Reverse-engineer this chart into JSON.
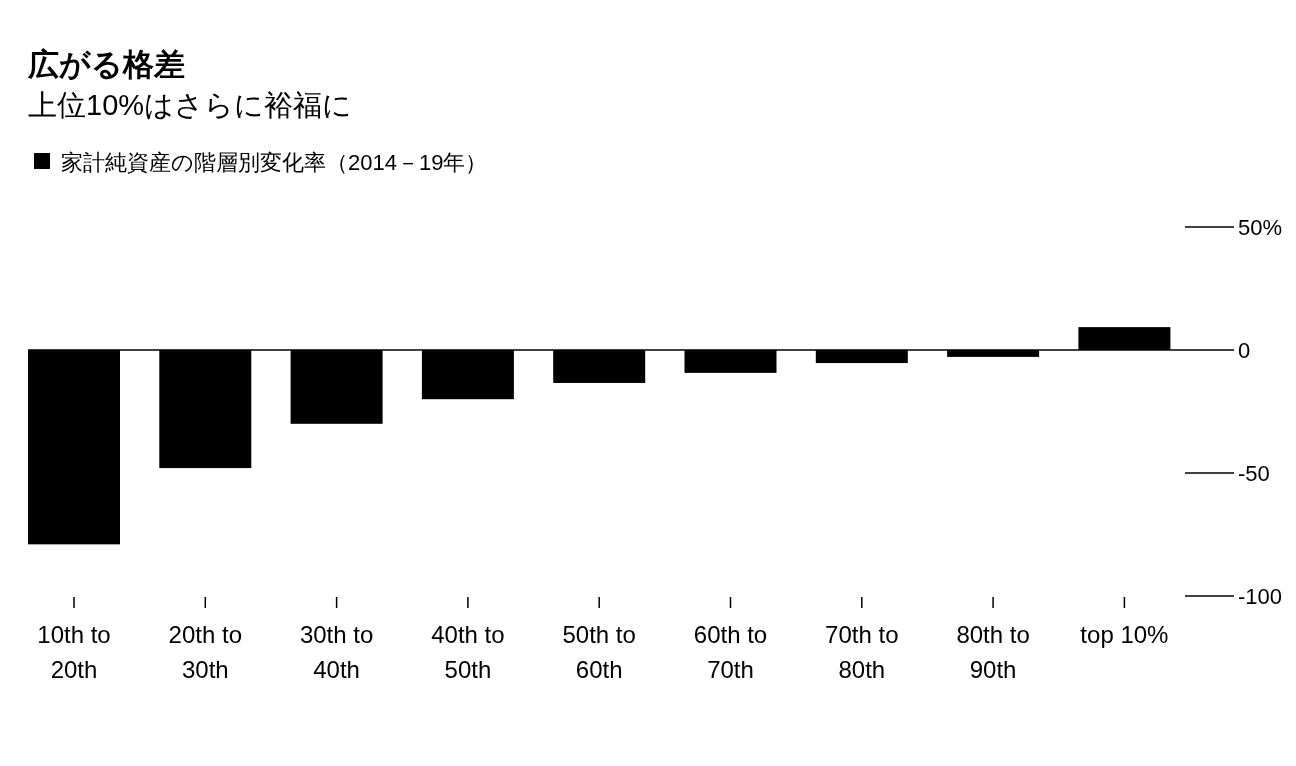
{
  "chart_data": {
    "type": "bar",
    "title": "広がる格差",
    "subtitle": "上位10%はさらに裕福に",
    "categories": [
      "10th to 20th",
      "20th to 30th",
      "30th to 40th",
      "40th to 50th",
      "50th to 60th",
      "60th to 70th",
      "70th to 80th",
      "80th to 90th",
      "top 10%"
    ],
    "series": [
      {
        "name": "家計純資産の階層別変化率（2014－19年）",
        "color": "#000000",
        "values": [
          -79,
          -48,
          -30,
          -20,
          -13.4,
          -9.3,
          -5.3,
          -2.8,
          9.3
        ]
      }
    ],
    "ylim": [
      -100,
      50
    ],
    "yticks": [
      {
        "value": 50,
        "label": "50%"
      },
      0,
      -50,
      -100
    ],
    "legend": "top left"
  }
}
